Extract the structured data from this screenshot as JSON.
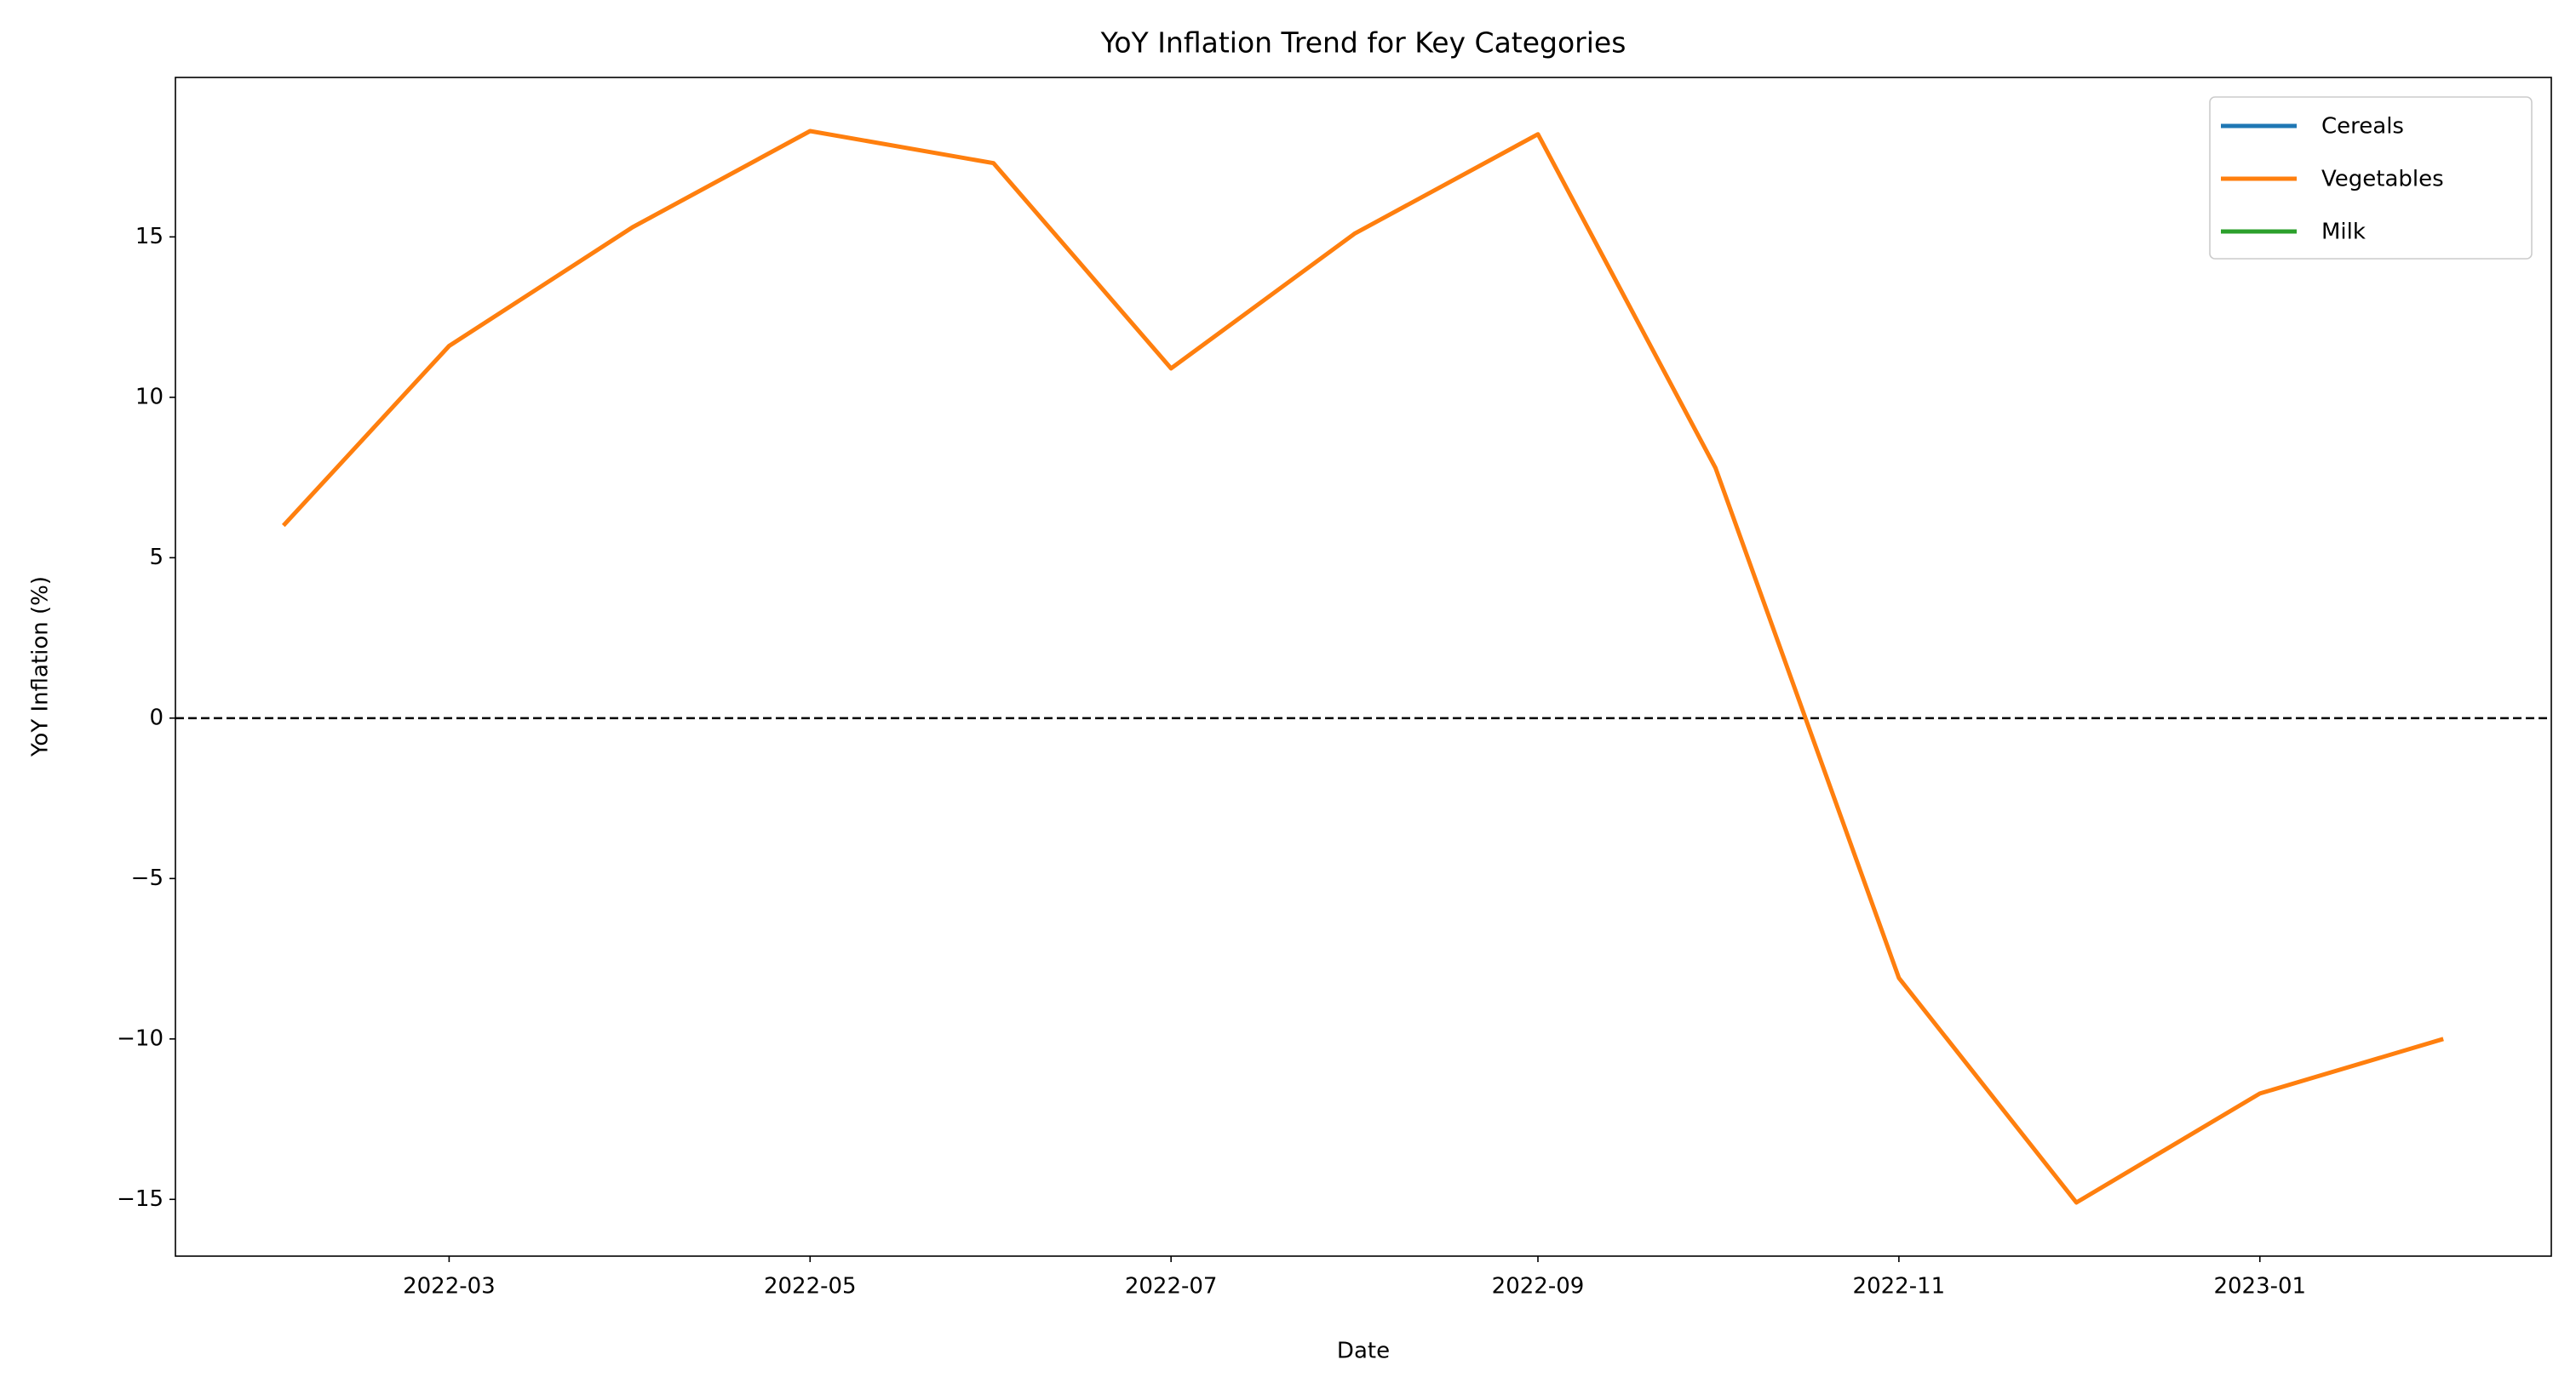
{
  "chart_data": {
    "type": "line",
    "title": "YoY Inflation Trend for Key Categories",
    "xlabel": "Date",
    "ylabel": "YoY Inflation (%)",
    "x": [
      "2022-02",
      "2022-03",
      "2022-04",
      "2022-05",
      "2022-06",
      "2022-07",
      "2022-08",
      "2022-09",
      "2022-10",
      "2022-11",
      "2022-12",
      "2023-01",
      "2023-02"
    ],
    "series": [
      {
        "name": "Cereals",
        "color": "#1f77b4",
        "values": [
          null,
          null,
          null,
          null,
          null,
          null,
          null,
          null,
          null,
          null,
          null,
          null,
          null
        ]
      },
      {
        "name": "Vegetables",
        "color": "#ff7f0e",
        "values": [
          6.0,
          11.6,
          15.3,
          18.3,
          17.3,
          10.9,
          15.1,
          18.2,
          7.8,
          -8.1,
          -15.1,
          -11.7,
          -10.0
        ]
      },
      {
        "name": "Milk",
        "color": "#2ca02c",
        "values": [
          null,
          null,
          null,
          null,
          null,
          null,
          null,
          null,
          null,
          null,
          null,
          null,
          null
        ]
      }
    ],
    "xticks": [
      "2022-03",
      "2022-05",
      "2022-07",
      "2022-09",
      "2022-11",
      "2023-01"
    ],
    "ylim": [
      -16.77,
      19.97
    ],
    "yticks": [
      {
        "value": -15,
        "label": "−15"
      },
      {
        "value": -10,
        "label": "−10"
      },
      {
        "value": -5,
        "label": "−5"
      },
      0,
      5,
      10,
      15
    ],
    "hline": {
      "value": 0,
      "color": "#000000",
      "style": "dashed"
    },
    "grid": false,
    "legend": "upper right"
  }
}
